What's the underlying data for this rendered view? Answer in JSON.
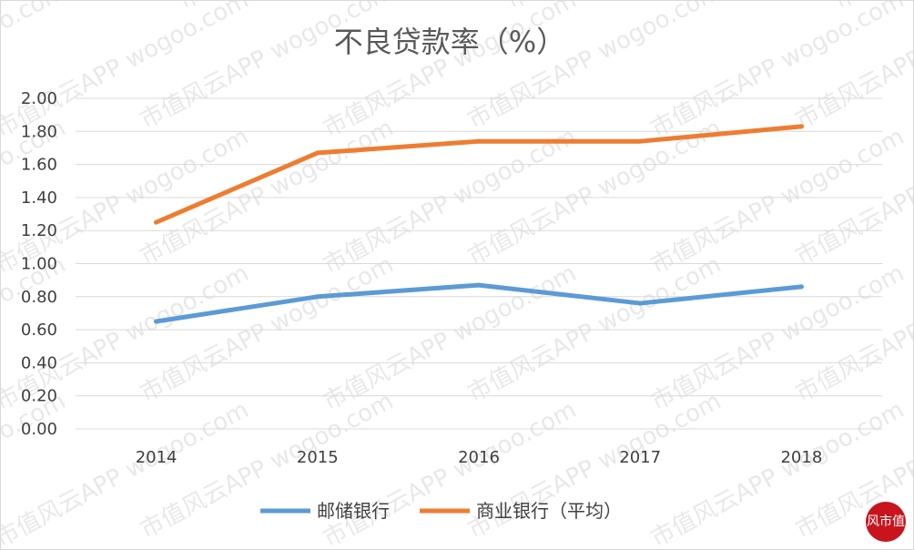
{
  "chart_data": {
    "type": "line",
    "title": "不良贷款率（%）",
    "categories": [
      "2014",
      "2015",
      "2016",
      "2017",
      "2018"
    ],
    "series": [
      {
        "name": "邮储银行",
        "values": [
          0.65,
          0.8,
          0.87,
          0.76,
          0.86
        ],
        "color": "#5b9bd5"
      },
      {
        "name": "商业银行（平均）",
        "values": [
          1.25,
          1.67,
          1.74,
          1.74,
          1.83
        ],
        "color": "#ed7d31"
      }
    ],
    "ylim": [
      0,
      2.0
    ],
    "yticks": [
      "0.00",
      "0.20",
      "0.40",
      "0.60",
      "0.80",
      "1.00",
      "1.20",
      "1.40",
      "1.60",
      "1.80",
      "2.00"
    ],
    "grid": true,
    "legend_position": "bottom"
  },
  "watermark": {
    "text_cn": "市值风云APP",
    "text_url": "wogoo.com"
  },
  "logo": {
    "text": "风市值"
  },
  "colors": {
    "gridline": "#d9d9d9",
    "text": "#404040",
    "logo_red": "#c8151d"
  }
}
